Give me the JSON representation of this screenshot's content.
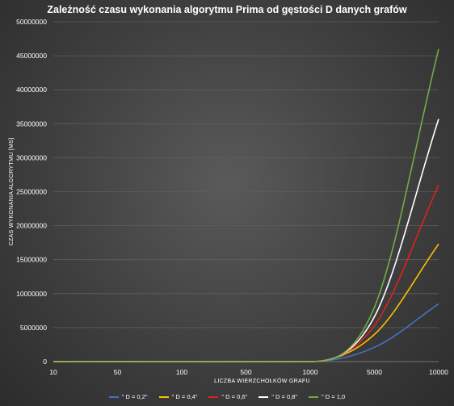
{
  "chart_data": {
    "type": "line",
    "title": "Zależność czasu wykonania algorytmu Prima od gęstości D danych grafów",
    "xlabel": "LICZBA WIERZCHOŁKÓW GRAFU",
    "ylabel": "CZAS WYKONANIA ALGORYTMU [MS]",
    "categories": [
      "10",
      "50",
      "100",
      "500",
      "1000",
      "5000",
      "10000"
    ],
    "ylim": [
      0,
      50000000
    ],
    "yticks": [
      "0",
      "5000000",
      "10000000",
      "15000000",
      "20000000",
      "25000000",
      "30000000",
      "35000000",
      "40000000",
      "45000000",
      "50000000"
    ],
    "grid": true,
    "legend_position": "bottom",
    "series": [
      {
        "name": "\" D = 0,2\"",
        "color": "#4472c4",
        "values": [
          0,
          0,
          0,
          0,
          0,
          2100000,
          8500000
        ]
      },
      {
        "name": "\" D = 0,4\"",
        "color": "#ffc000",
        "values": [
          0,
          0,
          0,
          0,
          0,
          4000000,
          17300000
        ]
      },
      {
        "name": "\" D = 0,6\"",
        "color": "#e02020",
        "values": [
          0,
          0,
          0,
          0,
          0,
          5300000,
          26000000
        ]
      },
      {
        "name": "\" D = 0,8\"",
        "color": "#ffffff",
        "values": [
          0,
          0,
          0,
          0,
          0,
          6600000,
          35700000
        ]
      },
      {
        "name": "\" D = 1,0",
        "color": "#70ad47",
        "values": [
          0,
          0,
          0,
          0,
          0,
          8000000,
          46000000
        ]
      }
    ]
  }
}
